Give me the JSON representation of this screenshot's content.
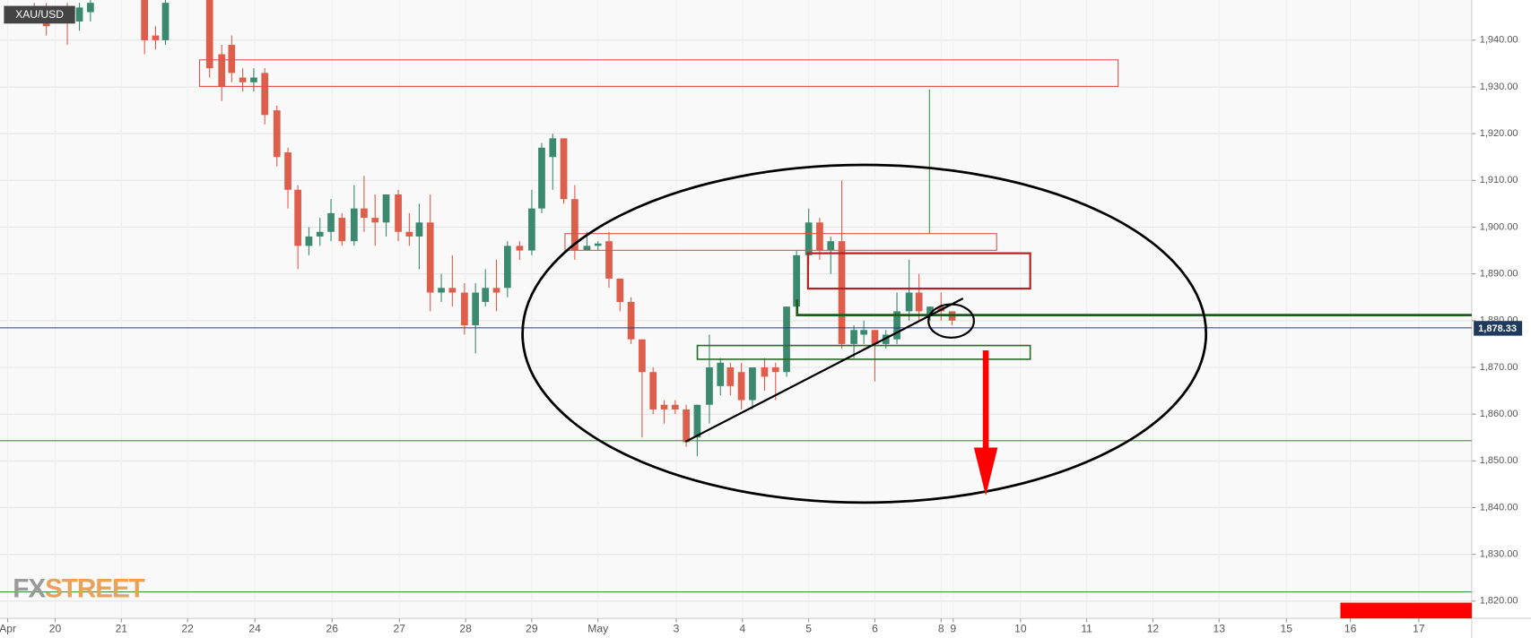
{
  "chart_data": {
    "type": "candlestick",
    "title": "XAU/USD",
    "up_color": "#3b8a70",
    "down_color": "#de5e4c",
    "grid": true,
    "xlim": [
      0,
      133.4
    ],
    "ylim": [
      1816.3,
      1948.6
    ],
    "yticks": [
      {
        "value": 1820,
        "label": "1,820.00"
      },
      {
        "value": 1830,
        "label": "1,830.00"
      },
      {
        "value": 1840,
        "label": "1,840.00"
      },
      {
        "value": 1850,
        "label": "1,850.00"
      },
      {
        "value": 1860,
        "label": "1,860.00"
      },
      {
        "value": 1870,
        "label": "1,870.00"
      },
      {
        "value": 1880,
        "label": "1,880.00"
      },
      {
        "value": 1890,
        "label": "1,890.00"
      },
      {
        "value": 1900,
        "label": "1,900.00"
      },
      {
        "value": 1910,
        "label": "1,910.00"
      },
      {
        "value": 1920,
        "label": "1,920.00"
      },
      {
        "value": 1930,
        "label": "1,930.00"
      },
      {
        "value": 1940,
        "label": "1,940.00"
      }
    ],
    "xticks": [
      {
        "value": 0.7,
        "label": "Apr"
      },
      {
        "value": 5.0,
        "label": "20"
      },
      {
        "value": 11.0,
        "label": "21"
      },
      {
        "value": 17.0,
        "label": "22"
      },
      {
        "value": 23.1,
        "label": "24"
      },
      {
        "value": 30.1,
        "label": "26"
      },
      {
        "value": 36.2,
        "label": "27"
      },
      {
        "value": 42.2,
        "label": "28"
      },
      {
        "value": 48.2,
        "label": "29"
      },
      {
        "value": 54.2,
        "label": "May"
      },
      {
        "value": 61.3,
        "label": "3"
      },
      {
        "value": 67.3,
        "label": "4"
      },
      {
        "value": 73.3,
        "label": "5"
      },
      {
        "value": 79.3,
        "label": "6"
      },
      {
        "value": 85.3,
        "label": "8"
      },
      {
        "value": 86.4,
        "label": "9"
      },
      {
        "value": 92.5,
        "label": "10"
      },
      {
        "value": 98.5,
        "label": "11"
      },
      {
        "value": 104.5,
        "label": "12"
      },
      {
        "value": 110.5,
        "label": "13"
      },
      {
        "value": 116.6,
        "label": "15"
      },
      {
        "value": 122.4,
        "label": "16"
      },
      {
        "value": 128.6,
        "label": "17"
      }
    ],
    "x": [
      3.1,
      4.2,
      6.1,
      7.2,
      8.2,
      13.1,
      14.1,
      15.0,
      19.0,
      20.1,
      21.0,
      22.0,
      23.0,
      24.0,
      25.1,
      26.1,
      27.0,
      28.0,
      29.0,
      30.0,
      31.0,
      32.1,
      33.0,
      34.0,
      35.0,
      36.1,
      37.1,
      38.0,
      39.0,
      40.0,
      41.0,
      42.1,
      43.1,
      44.0,
      45.0,
      46.0,
      47.1,
      48.2,
      49.1,
      50.1,
      51.1,
      52.1,
      53.2,
      54.2,
      55.2,
      56.2,
      57.2,
      58.2,
      59.2,
      60.2,
      61.2,
      62.2,
      63.2,
      64.3,
      65.3,
      66.2,
      67.2,
      68.2,
      69.3,
      70.3,
      71.3,
      72.2,
      73.3,
      74.3,
      75.3,
      76.3,
      77.4,
      78.3,
      79.3,
      80.3,
      81.3,
      82.4,
      83.3,
      84.3,
      85.3,
      86.3
    ],
    "open": [
      1947,
      1946,
      1947,
      1944,
      1946,
      1948.6,
      1941,
      1940,
      1948.6,
      1937,
      1939,
      1932,
      1931,
      1933,
      1925,
      1916,
      1908,
      1896,
      1898,
      1899,
      1902,
      1897,
      1904,
      1902,
      1901,
      1907,
      1899,
      1898,
      1901,
      1886,
      1887,
      1886,
      1879,
      1884,
      1887,
      1887,
      1896,
      1895,
      1904,
      1915,
      1919,
      1906,
      1895,
      1896,
      1897,
      1889,
      1884,
      1876,
      1869,
      1862,
      1862,
      1861,
      1855,
      1862,
      1866,
      1870,
      1869,
      1863,
      1870,
      1870,
      1869,
      1883,
      1894,
      1901,
      1895,
      1897,
      1875,
      1877,
      1878,
      1875,
      1876,
      1882,
      1886,
      1881,
      1883,
      1882
    ],
    "high": [
      1948,
      1948,
      1948,
      1948,
      1948.6,
      1948.6,
      1943,
      1948.6,
      1948.6,
      1939,
      1941,
      1934,
      1934,
      1934,
      1926,
      1917,
      1909,
      1900,
      1902,
      1906,
      1903,
      1909,
      1911,
      1907,
      1907,
      1908,
      1903,
      1905,
      1907,
      1890,
      1894,
      1888,
      1888,
      1891,
      1893,
      1897,
      1897,
      1908,
      1918,
      1920,
      1919,
      1909,
      1899,
      1897,
      1899,
      1889,
      1885,
      1876,
      1870,
      1863,
      1863,
      1862,
      1862,
      1877,
      1872,
      1871,
      1871,
      1870,
      1872,
      1871,
      1883,
      1895,
      1904,
      1902,
      1898,
      1910,
      1879,
      1880,
      1878,
      1878,
      1886,
      1893,
      1890,
      1883,
      1886,
      1882
    ],
    "low": [
      1944,
      1941,
      1939,
      1942,
      1944,
      1937,
      1938,
      1939,
      1932,
      1927,
      1931,
      1929,
      1929,
      1922,
      1913,
      1904,
      1891,
      1894,
      1896,
      1897,
      1896,
      1896,
      1899,
      1896,
      1898,
      1897,
      1896,
      1891,
      1882,
      1884,
      1883,
      1877,
      1873,
      1883,
      1882,
      1885,
      1893,
      1894,
      1903,
      1908,
      1905,
      1893,
      1895,
      1895,
      1887,
      1882,
      1875,
      1855,
      1860,
      1858,
      1860,
      1853,
      1851,
      1858,
      1864,
      1864,
      1861,
      1861,
      1865,
      1863,
      1868,
      1881,
      1892,
      1893,
      1890,
      1874,
      1872,
      1875,
      1867,
      1874,
      1875,
      1880,
      1880,
      1880,
      1880,
      1879
    ],
    "close": [
      1946,
      1943,
      1944,
      1947,
      1948,
      1940,
      1940,
      1948,
      1934,
      1930,
      1933,
      1931,
      1932,
      1924,
      1915,
      1908,
      1896,
      1898,
      1899,
      1903,
      1897,
      1904,
      1902,
      1901,
      1907,
      1899,
      1898,
      1901,
      1886,
      1887,
      1886,
      1879,
      1886,
      1887,
      1886,
      1896,
      1895,
      1904,
      1917,
      1919,
      1906,
      1895,
      1896,
      1896.5,
      1889,
      1884,
      1876,
      1869,
      1861,
      1861,
      1861,
      1854,
      1862,
      1870,
      1871,
      1866,
      1863,
      1870,
      1868,
      1869,
      1883,
      1894,
      1901,
      1895,
      1897,
      1875,
      1878,
      1878,
      1875,
      1877,
      1882,
      1886,
      1882,
      1883,
      1882,
      1880
    ],
    "last_price": {
      "value": 1878.33,
      "label": "1,878.33"
    },
    "watermark": [
      "FX",
      "STREET"
    ]
  }
}
